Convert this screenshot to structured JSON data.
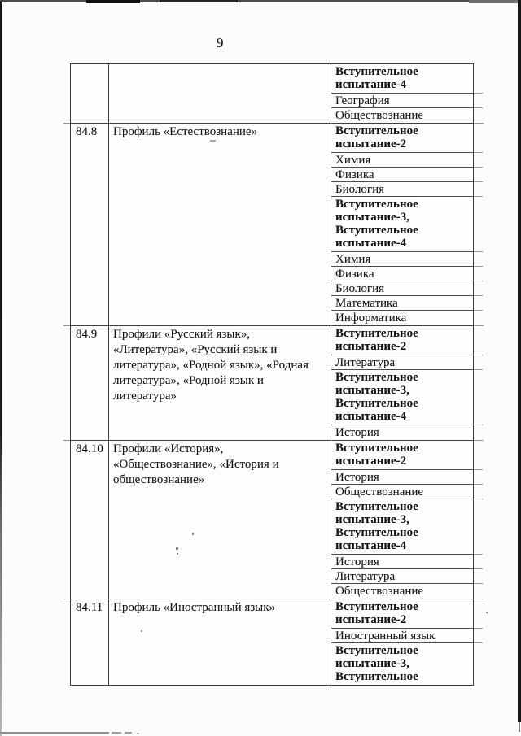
{
  "page": {
    "number": "9"
  },
  "colors": {
    "background": "#fcfcfc",
    "text": "#141414",
    "table_border": "#3b3b3b",
    "scan_edge": "#171717",
    "artifact_gray": "#8f8f8f"
  },
  "table": {
    "rows": [
      {
        "num": "",
        "profile": "",
        "exams": [
          {
            "text": "Вступительное испытание-4",
            "bold": true
          },
          {
            "text": "География",
            "bold": false
          },
          {
            "text": "Обществознание",
            "bold": false
          }
        ]
      },
      {
        "num": "84.8",
        "profile": "Профиль «Естествознание»",
        "exams": [
          {
            "text": "Вступительное испытание-2",
            "bold": true
          },
          {
            "text": "Химия",
            "bold": false
          },
          {
            "text": "Физика",
            "bold": false
          },
          {
            "text": "Биология",
            "bold": false
          },
          {
            "text": "Вступительное испытание-3, Вступительное испытание-4",
            "bold": true
          },
          {
            "text": "Химия",
            "bold": false
          },
          {
            "text": "Физика",
            "bold": false
          },
          {
            "text": "Биология",
            "bold": false
          },
          {
            "text": "Математика",
            "bold": false
          },
          {
            "text": "Информатика",
            "bold": false
          }
        ]
      },
      {
        "num": "84.9",
        "profile": "Профили «Русский язык», «Литература», «Русский язык и литература», «Родной язык», «Родная литература», «Родной язык и литература»",
        "exams": [
          {
            "text": "Вступительное испытание-2",
            "bold": true
          },
          {
            "text": "Литература",
            "bold": false
          },
          {
            "text": "Вступительное испытание-3, Вступительное испытание-4",
            "bold": true
          },
          {
            "text": "История",
            "bold": false
          }
        ]
      },
      {
        "num": "84.10",
        "profile": "Профили «История», «Обществознание», «История и обществознание»",
        "exams": [
          {
            "text": "Вступительное испытание-2",
            "bold": true
          },
          {
            "text": "История",
            "bold": false
          },
          {
            "text": "Обществознание",
            "bold": false
          },
          {
            "text": "Вступительное испытание-3, Вступительное испытание-4",
            "bold": true
          },
          {
            "text": "История",
            "bold": false
          },
          {
            "text": "Литература",
            "bold": false
          },
          {
            "text": "Обществознание",
            "bold": false
          }
        ]
      },
      {
        "num": "84.11",
        "profile": "Профиль «Иностранный язык»",
        "exams": [
          {
            "text": "Вступительное испытание-2",
            "bold": true
          },
          {
            "text": "Иностранный язык",
            "bold": false
          },
          {
            "text": "Вступительное испытание-3, Вступительное",
            "bold": true
          }
        ]
      }
    ]
  }
}
